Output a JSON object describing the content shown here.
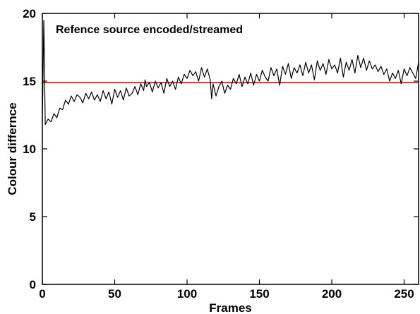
{
  "chart_data": {
    "type": "line",
    "title": "Refence source encoded/streamed",
    "xlabel": "Frames",
    "ylabel": "Colour differnce",
    "xlim": [
      0,
      260
    ],
    "ylim": [
      0,
      20
    ],
    "xticks": [
      0,
      50,
      100,
      150,
      200,
      250
    ],
    "yticks": [
      0,
      5,
      10,
      15,
      20
    ],
    "grid": false,
    "legend": "none",
    "x": [
      0,
      1,
      2,
      4,
      6,
      8,
      10,
      12,
      14,
      16,
      18,
      20,
      22,
      24,
      26,
      28,
      30,
      32,
      34,
      36,
      38,
      40,
      42,
      44,
      46,
      48,
      50,
      52,
      54,
      56,
      58,
      60,
      62,
      64,
      66,
      68,
      70,
      71,
      72,
      74,
      76,
      78,
      80,
      82,
      84,
      86,
      88,
      90,
      92,
      94,
      96,
      98,
      100,
      102,
      104,
      106,
      108,
      110,
      112,
      114,
      116,
      117,
      118,
      120,
      122,
      124,
      126,
      128,
      130,
      132,
      134,
      136,
      138,
      140,
      142,
      144,
      146,
      148,
      150,
      152,
      154,
      156,
      158,
      160,
      162,
      164,
      166,
      168,
      170,
      172,
      174,
      176,
      178,
      180,
      182,
      184,
      186,
      188,
      190,
      192,
      194,
      196,
      198,
      200,
      202,
      204,
      206,
      208,
      210,
      212,
      214,
      216,
      218,
      220,
      222,
      224,
      226,
      228,
      230,
      232,
      234,
      236,
      238,
      240,
      242,
      244,
      246,
      248,
      250,
      252,
      254,
      256,
      258,
      260
    ],
    "series": [
      {
        "color": "#000000",
        "values": [
          12.0,
          19.5,
          11.8,
          12.2,
          12.0,
          12.6,
          12.3,
          13.0,
          12.9,
          13.6,
          13.3,
          13.9,
          13.5,
          14.0,
          13.8,
          13.4,
          14.1,
          13.7,
          14.2,
          13.6,
          14.0,
          13.5,
          14.3,
          13.7,
          14.2,
          13.3,
          14.4,
          13.8,
          14.3,
          13.6,
          14.5,
          13.9,
          14.1,
          14.6,
          14.0,
          14.8,
          14.3,
          15.1,
          14.6,
          14.9,
          14.2,
          15.0,
          14.5,
          14.9,
          14.1,
          15.2,
          14.6,
          15.0,
          14.4,
          15.3,
          14.8,
          15.5,
          15.2,
          15.8,
          15.4,
          15.7,
          15.0,
          16.0,
          15.3,
          15.9,
          15.1,
          13.7,
          14.8,
          13.9,
          14.6,
          15.0,
          14.1,
          14.7,
          14.4,
          15.2,
          14.8,
          15.5,
          14.6,
          15.3,
          14.8,
          15.6,
          14.7,
          15.5,
          15.0,
          15.8,
          15.3,
          15.0,
          16.0,
          15.4,
          15.9,
          14.7,
          16.1,
          15.5,
          16.3,
          15.2,
          16.0,
          15.6,
          16.2,
          15.4,
          16.4,
          15.6,
          16.2,
          15.1,
          16.5,
          15.8,
          16.3,
          15.5,
          16.6,
          15.9,
          16.2,
          15.6,
          16.7,
          15.3,
          16.4,
          15.8,
          16.6,
          15.6,
          16.9,
          16.0,
          16.7,
          15.8,
          16.5,
          15.9,
          16.2,
          15.7,
          16.1,
          15.5,
          15.9,
          15.0,
          15.6,
          15.2,
          15.8,
          14.8,
          15.9,
          15.4,
          16.0,
          15.6,
          15.2,
          16.4
        ]
      }
    ],
    "reference_lines": [
      {
        "y": 14.9,
        "color": "#ff0000"
      }
    ]
  }
}
